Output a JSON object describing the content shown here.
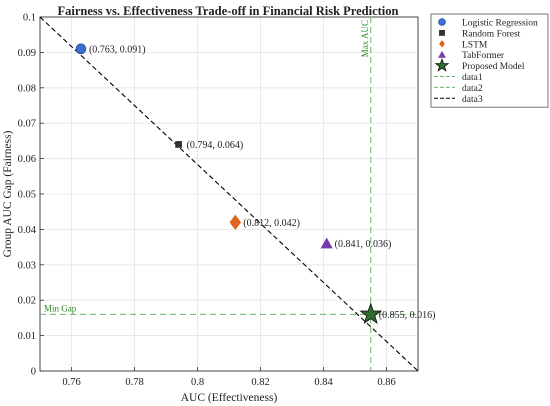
{
  "chart_data": {
    "type": "scatter",
    "title": "Fairness vs. Effectiveness Trade-off in Financial Risk Prediction",
    "xlabel": "AUC (Effectiveness)",
    "ylabel": "Group AUC Gap (Fairness)",
    "xlim": [
      0.75,
      0.87
    ],
    "ylim": [
      0,
      0.1
    ],
    "xticks": [
      "0.76",
      "0.78",
      "0.8",
      "0.82",
      "0.84",
      "0.86"
    ],
    "yticks": [
      "0",
      "0.01",
      "0.02",
      "0.03",
      "0.04",
      "0.05",
      "0.06",
      "0.07",
      "0.08",
      "0.09",
      "0.1"
    ],
    "grid": true,
    "legend_position": "outside right, top",
    "series": [
      {
        "name": "Logistic Regression",
        "x": 0.763,
        "y": 0.091,
        "marker": "circle",
        "color": "#3b6fd1",
        "label": "(0.763, 0.091)"
      },
      {
        "name": "Random Forest",
        "x": 0.794,
        "y": 0.064,
        "marker": "square",
        "color": "#333333",
        "label": "(0.794, 0.064)"
      },
      {
        "name": "LSTM",
        "x": 0.812,
        "y": 0.042,
        "marker": "diamond",
        "color": "#e0641e",
        "label": "(0.812, 0.042)"
      },
      {
        "name": "TabFormer",
        "x": 0.841,
        "y": 0.036,
        "marker": "triangle",
        "color": "#7a3aa8",
        "label": "(0.841, 0.036)"
      },
      {
        "name": "Proposed Model",
        "x": 0.855,
        "y": 0.016,
        "marker": "star",
        "color": "#2e6b2e",
        "label": "(0.855, 0.016)"
      }
    ],
    "reference_lines": [
      {
        "name": "data1",
        "orientation": "vertical",
        "x": 0.855,
        "color": "#6ab46a",
        "style": "dashed",
        "text": "Max AUC"
      },
      {
        "name": "data2",
        "orientation": "horizontal",
        "y": 0.016,
        "color": "#6ab46a",
        "style": "dashed",
        "text": "Min Gap"
      },
      {
        "name": "data3",
        "orientation": "diagonal",
        "x": [
          0.75,
          0.87
        ],
        "y": [
          0.1,
          0
        ],
        "color": "#000000",
        "style": "dashed",
        "text": ""
      }
    ]
  }
}
